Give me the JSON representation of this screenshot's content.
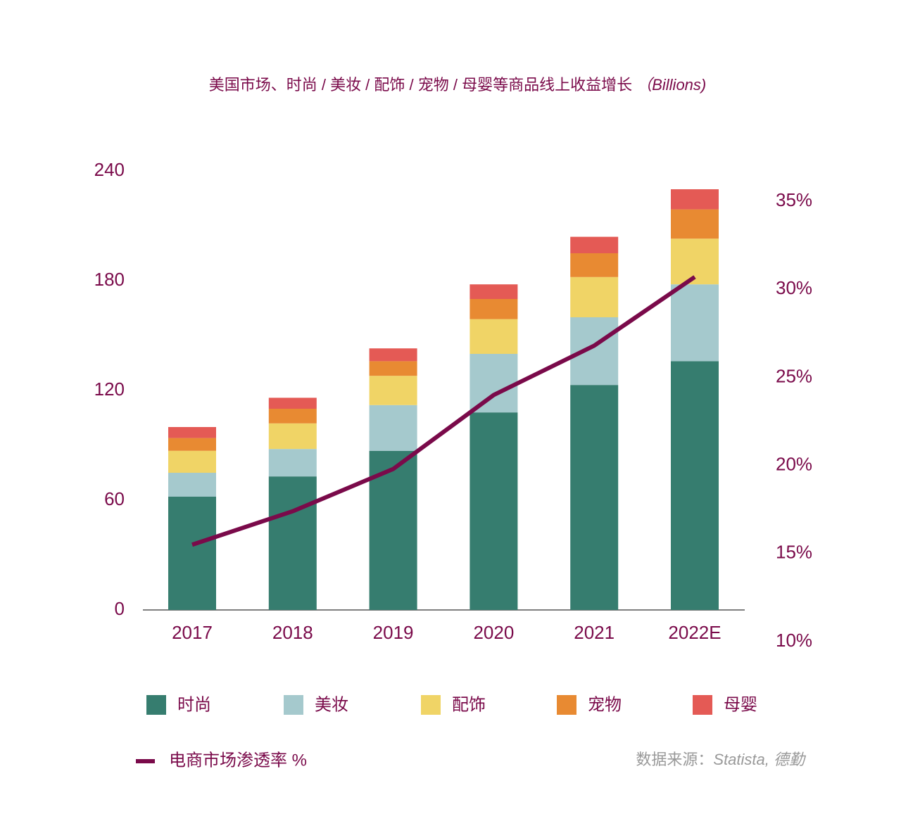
{
  "chart_data": {
    "type": "bar",
    "title": "美国市场、时尚 / 美妆 / 配饰 / 宠物 / 母婴等商品线上收益增长",
    "ylabel": "（Billions)",
    "categories": [
      "2017",
      "2018",
      "2019",
      "2020",
      "2021",
      "2022E"
    ],
    "stacked": true,
    "series": [
      {
        "name": "时尚",
        "color": "#367d6f",
        "values": [
          62,
          73,
          87,
          108,
          123,
          136
        ]
      },
      {
        "name": "美妆",
        "color": "#a5c9cd",
        "values": [
          13,
          15,
          25,
          32,
          37,
          42
        ]
      },
      {
        "name": "配饰",
        "color": "#f0d466",
        "values": [
          12,
          14,
          16,
          19,
          22,
          25
        ]
      },
      {
        "name": "宠物",
        "color": "#e88a32",
        "values": [
          7,
          8,
          8,
          11,
          13,
          16
        ]
      },
      {
        "name": "母婴",
        "color": "#e45a55",
        "values": [
          6,
          6,
          7,
          8,
          9,
          11
        ]
      },
      {
        "name": "电商市场渗透率 %",
        "type": "line",
        "axis": "y2",
        "color": "#7a0a4a",
        "values": [
          15.5,
          17.4,
          19.8,
          24.0,
          26.8,
          30.7
        ]
      }
    ],
    "ylim": [
      0,
      240
    ],
    "yticks": [
      0,
      60,
      120,
      180,
      240
    ],
    "y2lim": [
      10,
      35
    ],
    "y2ticks": [
      {
        "value": 10,
        "label": "10%"
      },
      {
        "value": 15,
        "label": "15%"
      },
      {
        "value": 20,
        "label": "20%"
      },
      {
        "value": 25,
        "label": "25%"
      },
      {
        "value": 30,
        "label": "30%"
      },
      {
        "value": 35,
        "label": "35%"
      }
    ],
    "source_label": "数据来源：",
    "source": "Statista, 德勤"
  }
}
